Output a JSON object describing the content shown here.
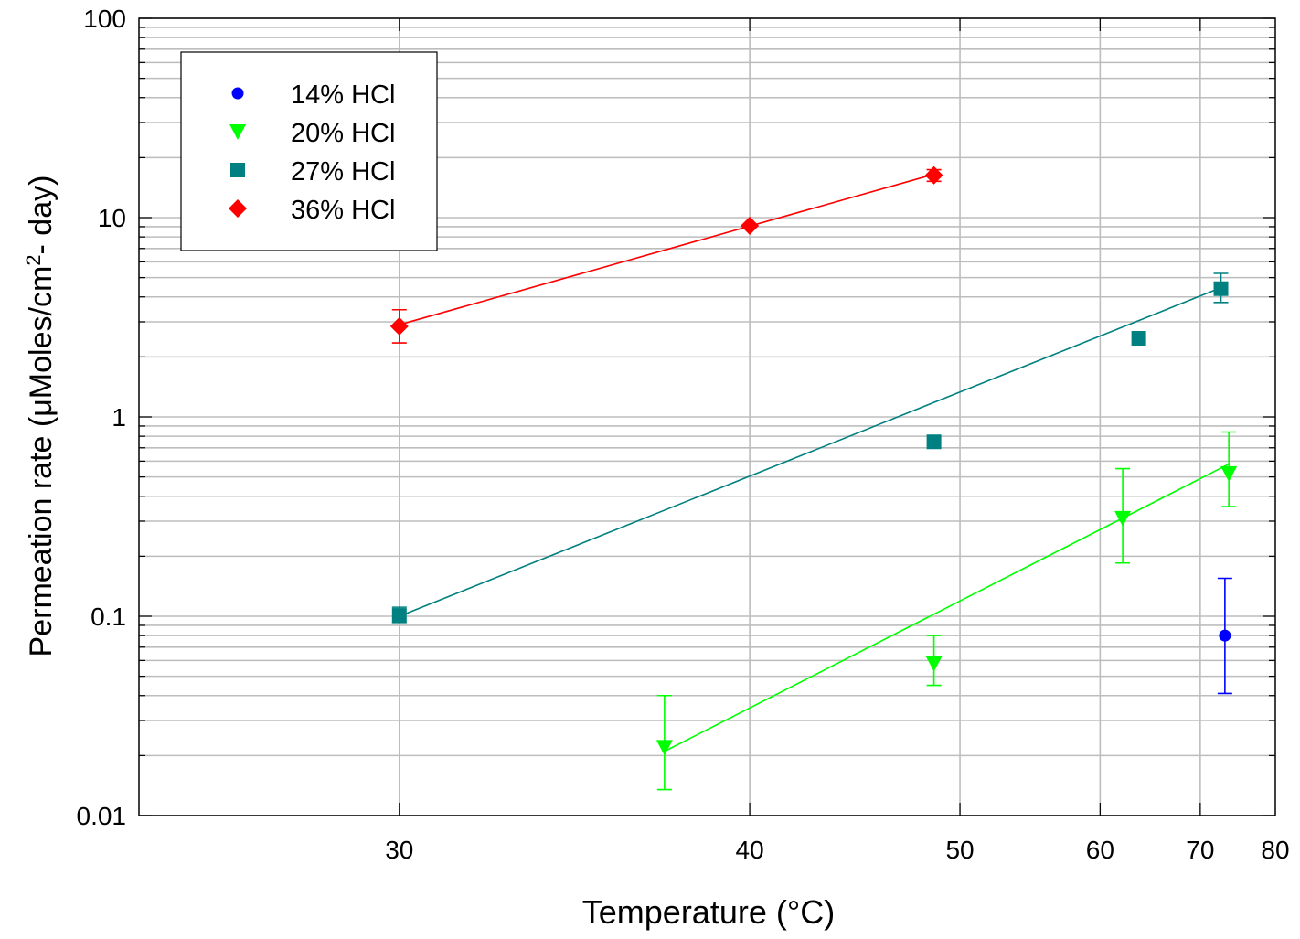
{
  "chart_data": {
    "type": "scatter",
    "xlabel": "Temperature (°C)",
    "ylabel": "Permeation rate (μMoles/cm",
    "ylabel_sup": "2",
    "ylabel_tail": "- day)",
    "x_scale": "reciprocal",
    "y_scale": "log",
    "xlim": [
      25.3,
      80
    ],
    "ylim": [
      0.01,
      100
    ],
    "x_ticks": [
      30,
      40,
      50,
      60,
      70,
      80
    ],
    "y_ticks": [
      0.01,
      0.1,
      1,
      10,
      100
    ],
    "y_tick_labels": [
      "0.01",
      "0.1",
      "1",
      "10",
      "100"
    ],
    "grid": true,
    "legend_position": "top-left",
    "series": [
      {
        "name": "14% HCl",
        "color": "#0000ff",
        "marker": "circle",
        "points": [
          {
            "x": 73,
            "y": 0.08,
            "ylow": 0.041,
            "yhigh": 0.155
          }
        ],
        "fit": null
      },
      {
        "name": "20% HCl",
        "color": "#00ff00",
        "marker": "triangle-down",
        "points": [
          {
            "x": 37,
            "y": 0.022,
            "ylow": 0.0135,
            "yhigh": 0.04
          },
          {
            "x": 48.5,
            "y": 0.058,
            "ylow": 0.045,
            "yhigh": 0.08
          },
          {
            "x": 62,
            "y": 0.31,
            "ylow": 0.185,
            "yhigh": 0.55
          },
          {
            "x": 73.5,
            "y": 0.52,
            "ylow": 0.355,
            "yhigh": 0.84
          }
        ],
        "fit": {
          "x": [
            37,
            73.5
          ],
          "y": [
            0.021,
            0.58
          ]
        }
      },
      {
        "name": "27% HCl",
        "color": "#008080",
        "marker": "square",
        "points": [
          {
            "x": 30,
            "y": 0.101,
            "ylow": 0.093,
            "yhigh": 0.111
          },
          {
            "x": 48.5,
            "y": 0.75
          },
          {
            "x": 63.5,
            "y": 2.48
          },
          {
            "x": 72.5,
            "y": 4.4,
            "ylow": 3.75,
            "yhigh": 5.25
          }
        ],
        "fit": {
          "x": [
            30,
            72.5
          ],
          "y": [
            0.1,
            4.45
          ]
        }
      },
      {
        "name": "36% HCl",
        "color": "#ff0000",
        "marker": "diamond",
        "points": [
          {
            "x": 30,
            "y": 2.85,
            "ylow": 2.35,
            "yhigh": 3.45
          },
          {
            "x": 40,
            "y": 9.1
          },
          {
            "x": 48.5,
            "y": 16.3,
            "ylow": 15.2,
            "yhigh": 17.4
          }
        ],
        "fit": {
          "x": [
            30,
            48.5
          ],
          "y": [
            2.9,
            16.5
          ]
        }
      }
    ]
  }
}
